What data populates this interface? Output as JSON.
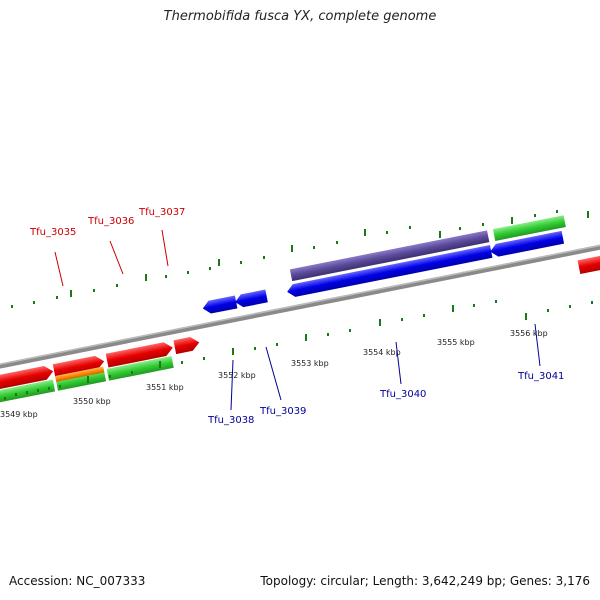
{
  "title": "Thermobifida fusca YX, complete genome",
  "footer": {
    "accession": "Accession: NC_007333",
    "summary": "Topology: circular; Length: 3,642,249 bp; Genes: 3,176"
  },
  "scale_labels": [
    "3549 kbp",
    "3550 kbp",
    "3551 kbp",
    "3552 kbp",
    "3553 kbp",
    "3554 kbp",
    "3555 kbp",
    "3556 kbp"
  ],
  "gene_labels_top": [
    "Tfu_3035",
    "Tfu_3036",
    "Tfu_3037"
  ],
  "gene_labels_bottom": [
    "Tfu_3038",
    "Tfu_3039",
    "Tfu_3040",
    "Tfu_3041"
  ],
  "colors": {
    "forward_cds": "#e60000",
    "forward_gene": "#33cc33",
    "orange_feature": "#ff8800",
    "reverse_cds": "#0000e6",
    "reverse_gene": "#33cc33",
    "purple_feature": "#5a4a9a",
    "backbone": "#888888",
    "tick": "#1a7a1a"
  }
}
